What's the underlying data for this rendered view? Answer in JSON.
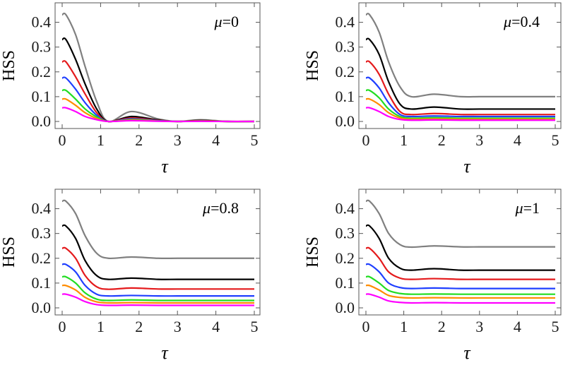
{
  "chart_data": [
    {
      "type": "line",
      "annotation": "μ=0",
      "xlabel": "τ",
      "ylabel": "HSS",
      "xlim": [
        0,
        5
      ],
      "ylim": [
        0,
        0.45
      ],
      "xticks": [
        "0",
        "1",
        "2",
        "3",
        "4",
        "5"
      ],
      "yticks": [
        "0.0",
        "0.1",
        "0.2",
        "0.3",
        "0.4"
      ],
      "series": [
        {
          "name": "gray",
          "color": "#808080",
          "values": [
            0.43,
            0.43,
            0.35,
            0.22,
            0.08,
            0.0,
            0.04,
            0.01,
            0.0,
            0.007,
            0.0,
            0.0
          ]
        },
        {
          "name": "black",
          "color": "#000000",
          "values": [
            0.33,
            0.33,
            0.25,
            0.15,
            0.05,
            0.0,
            0.02,
            0.006,
            0.0,
            0.004,
            0.0,
            0.0
          ]
        },
        {
          "name": "red",
          "color": "#e41a1c",
          "values": [
            0.24,
            0.24,
            0.18,
            0.11,
            0.035,
            0.0,
            0.014,
            0.004,
            0.0,
            0.003,
            0.0,
            0.0
          ]
        },
        {
          "name": "blue",
          "color": "#1f3fff",
          "values": [
            0.175,
            0.175,
            0.13,
            0.075,
            0.025,
            0.0,
            0.01,
            0.003,
            0.0,
            0.002,
            0.0,
            0.0
          ]
        },
        {
          "name": "green",
          "color": "#22dd22",
          "values": [
            0.125,
            0.125,
            0.09,
            0.05,
            0.018,
            0.0,
            0.007,
            0.002,
            0.0,
            0.0015,
            0.0,
            0.0
          ]
        },
        {
          "name": "orange",
          "color": "#ff8c00",
          "values": [
            0.09,
            0.09,
            0.065,
            0.035,
            0.012,
            0.0,
            0.005,
            0.0015,
            0.0,
            0.001,
            0.0,
            0.0
          ]
        },
        {
          "name": "magenta",
          "color": "#ff00ff",
          "values": [
            0.055,
            0.055,
            0.04,
            0.02,
            0.007,
            0.0,
            0.003,
            0.001,
            0.0,
            0.0005,
            0.0,
            0.0
          ]
        }
      ],
      "x": [
        0,
        0.1,
        0.35,
        0.6,
        0.9,
        1.2,
        1.8,
        2.5,
        3.0,
        3.6,
        4.3,
        5.0
      ]
    },
    {
      "type": "line",
      "annotation": "μ=0.4",
      "xlabel": "τ",
      "ylabel": "HSS",
      "xlim": [
        0,
        5
      ],
      "ylim": [
        0,
        0.45
      ],
      "xticks": [
        "0",
        "1",
        "2",
        "3",
        "4",
        "5"
      ],
      "yticks": [
        "0.0",
        "0.1",
        "0.2",
        "0.3",
        "0.4"
      ],
      "series": [
        {
          "name": "gray",
          "color": "#808080",
          "values": [
            0.43,
            0.43,
            0.36,
            0.24,
            0.14,
            0.1,
            0.11,
            0.1,
            0.1,
            0.1,
            0.1,
            0.1
          ]
        },
        {
          "name": "black",
          "color": "#000000",
          "values": [
            0.33,
            0.33,
            0.27,
            0.16,
            0.07,
            0.05,
            0.058,
            0.05,
            0.05,
            0.05,
            0.05,
            0.05
          ]
        },
        {
          "name": "red",
          "color": "#e41a1c",
          "values": [
            0.24,
            0.24,
            0.19,
            0.11,
            0.04,
            0.028,
            0.032,
            0.028,
            0.028,
            0.028,
            0.028,
            0.028
          ]
        },
        {
          "name": "blue",
          "color": "#1f3fff",
          "values": [
            0.175,
            0.175,
            0.135,
            0.075,
            0.028,
            0.02,
            0.022,
            0.02,
            0.02,
            0.02,
            0.02,
            0.02
          ]
        },
        {
          "name": "green",
          "color": "#22dd22",
          "values": [
            0.125,
            0.125,
            0.095,
            0.05,
            0.02,
            0.013,
            0.015,
            0.013,
            0.013,
            0.013,
            0.013,
            0.013
          ]
        },
        {
          "name": "orange",
          "color": "#ff8c00",
          "values": [
            0.09,
            0.09,
            0.068,
            0.035,
            0.014,
            0.009,
            0.01,
            0.009,
            0.009,
            0.009,
            0.009,
            0.009
          ]
        },
        {
          "name": "magenta",
          "color": "#ff00ff",
          "values": [
            0.055,
            0.055,
            0.04,
            0.02,
            0.008,
            0.005,
            0.006,
            0.005,
            0.005,
            0.005,
            0.005,
            0.005
          ]
        }
      ],
      "x": [
        0,
        0.1,
        0.35,
        0.6,
        0.9,
        1.2,
        1.8,
        2.5,
        3.0,
        3.6,
        4.3,
        5.0
      ]
    },
    {
      "type": "line",
      "annotation": "μ=0.8",
      "xlabel": "τ",
      "ylabel": "HSS",
      "xlim": [
        0,
        5
      ],
      "ylim": [
        0,
        0.45
      ],
      "xticks": [
        "0",
        "1",
        "2",
        "3",
        "4",
        "5"
      ],
      "yticks": [
        "0.0",
        "0.1",
        "0.2",
        "0.3",
        "0.4"
      ],
      "series": [
        {
          "name": "gray",
          "color": "#808080",
          "values": [
            0.43,
            0.43,
            0.38,
            0.29,
            0.22,
            0.2,
            0.205,
            0.2,
            0.2,
            0.2,
            0.2,
            0.2
          ]
        },
        {
          "name": "black",
          "color": "#000000",
          "values": [
            0.33,
            0.33,
            0.28,
            0.19,
            0.13,
            0.115,
            0.12,
            0.115,
            0.115,
            0.115,
            0.115,
            0.115
          ]
        },
        {
          "name": "red",
          "color": "#e41a1c",
          "values": [
            0.24,
            0.24,
            0.2,
            0.13,
            0.085,
            0.075,
            0.08,
            0.076,
            0.076,
            0.076,
            0.076,
            0.076
          ]
        },
        {
          "name": "blue",
          "color": "#1f3fff",
          "values": [
            0.175,
            0.175,
            0.145,
            0.09,
            0.055,
            0.048,
            0.05,
            0.048,
            0.048,
            0.048,
            0.048,
            0.048
          ]
        },
        {
          "name": "green",
          "color": "#22dd22",
          "values": [
            0.125,
            0.125,
            0.1,
            0.06,
            0.035,
            0.03,
            0.032,
            0.03,
            0.03,
            0.03,
            0.03,
            0.03
          ]
        },
        {
          "name": "orange",
          "color": "#ff8c00",
          "values": [
            0.09,
            0.09,
            0.072,
            0.042,
            0.024,
            0.02,
            0.021,
            0.02,
            0.02,
            0.02,
            0.02,
            0.02
          ]
        },
        {
          "name": "magenta",
          "color": "#ff00ff",
          "values": [
            0.055,
            0.055,
            0.043,
            0.025,
            0.013,
            0.01,
            0.011,
            0.01,
            0.01,
            0.01,
            0.01,
            0.01
          ]
        }
      ],
      "x": [
        0,
        0.1,
        0.35,
        0.6,
        0.9,
        1.2,
        1.8,
        2.5,
        3.0,
        3.6,
        4.3,
        5.0
      ]
    },
    {
      "type": "line",
      "annotation": "μ=1",
      "xlabel": "τ",
      "ylabel": "HSS",
      "xlim": [
        0,
        5
      ],
      "ylim": [
        0,
        0.45
      ],
      "xticks": [
        "0",
        "1",
        "2",
        "3",
        "4",
        "5"
      ],
      "yticks": [
        "0.0",
        "0.1",
        "0.2",
        "0.3",
        "0.4"
      ],
      "series": [
        {
          "name": "gray",
          "color": "#808080",
          "values": [
            0.43,
            0.43,
            0.38,
            0.3,
            0.255,
            0.245,
            0.25,
            0.246,
            0.246,
            0.246,
            0.246,
            0.246
          ]
        },
        {
          "name": "black",
          "color": "#000000",
          "values": [
            0.33,
            0.33,
            0.28,
            0.2,
            0.16,
            0.152,
            0.158,
            0.152,
            0.152,
            0.152,
            0.152,
            0.152
          ]
        },
        {
          "name": "red",
          "color": "#e41a1c",
          "values": [
            0.24,
            0.24,
            0.2,
            0.145,
            0.12,
            0.115,
            0.118,
            0.115,
            0.115,
            0.115,
            0.115,
            0.115
          ]
        },
        {
          "name": "blue",
          "color": "#1f3fff",
          "values": [
            0.175,
            0.175,
            0.145,
            0.1,
            0.082,
            0.078,
            0.08,
            0.078,
            0.078,
            0.078,
            0.078,
            0.078
          ]
        },
        {
          "name": "green",
          "color": "#22dd22",
          "values": [
            0.125,
            0.125,
            0.1,
            0.07,
            0.058,
            0.055,
            0.056,
            0.055,
            0.055,
            0.055,
            0.055,
            0.055
          ]
        },
        {
          "name": "orange",
          "color": "#ff8c00",
          "values": [
            0.09,
            0.09,
            0.072,
            0.05,
            0.042,
            0.04,
            0.041,
            0.04,
            0.04,
            0.04,
            0.04,
            0.04
          ]
        },
        {
          "name": "magenta",
          "color": "#ff00ff",
          "values": [
            0.055,
            0.055,
            0.043,
            0.028,
            0.022,
            0.02,
            0.021,
            0.02,
            0.02,
            0.02,
            0.02,
            0.02
          ]
        }
      ],
      "x": [
        0,
        0.1,
        0.35,
        0.6,
        0.9,
        1.2,
        1.8,
        2.5,
        3.0,
        3.6,
        4.3,
        5.0
      ]
    }
  ]
}
